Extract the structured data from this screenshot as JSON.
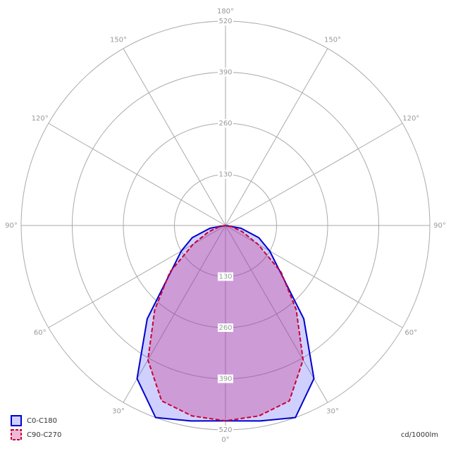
{
  "chart_data": {
    "type": "polar",
    "unit_label": "cd/1000lm",
    "rlim": [
      0,
      520
    ],
    "rticks": [
      130,
      260,
      390,
      520
    ],
    "angle_ticks": [
      {
        "value": 0,
        "label": "0°"
      },
      {
        "value": 30,
        "label": "30°"
      },
      {
        "value": 60,
        "label": "60°"
      },
      {
        "value": 90,
        "label": "90°"
      },
      {
        "value": 120,
        "label": "120°"
      },
      {
        "value": 150,
        "label": "150°"
      },
      {
        "value": 180,
        "label": "180°"
      }
    ],
    "angles": [
      -90,
      -80,
      -70,
      -60,
      -50,
      -40,
      -30,
      -20,
      -10,
      0,
      10,
      20,
      30,
      40,
      50,
      60,
      70,
      80,
      90
    ],
    "grid": true,
    "legend": "bottom-left",
    "series": [
      {
        "name": "C0-C180",
        "color": "#0000cc",
        "fill": "rgba(40,40,255,0.22)",
        "dash": false,
        "values": [
          0,
          40,
          90,
          130,
          180,
          310,
          450,
          520,
          505,
          497,
          505,
          520,
          450,
          310,
          180,
          130,
          90,
          40,
          0
        ]
      },
      {
        "name": "C90-C270",
        "color": "#cc0033",
        "fill": "rgba(200,60,140,0.35)",
        "dash": true,
        "values": [
          0,
          15,
          45,
          95,
          185,
          280,
          395,
          475,
          492,
          497,
          492,
          475,
          395,
          280,
          185,
          95,
          45,
          15,
          0
        ]
      }
    ]
  }
}
